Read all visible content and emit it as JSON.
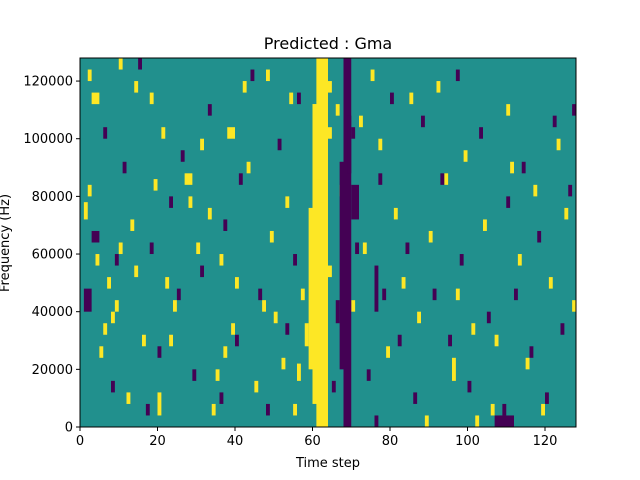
{
  "chart_data": {
    "type": "heatmap",
    "title": "Predicted : Gma",
    "xlabel": "Time step",
    "ylabel": "Frequency (Hz)",
    "xlim": [
      0,
      128
    ],
    "ylim": [
      0,
      128000
    ],
    "x_ticks": [
      0,
      20,
      40,
      60,
      80,
      100,
      120
    ],
    "x_tick_labels": [
      "0",
      "20",
      "40",
      "60",
      "80",
      "100",
      "120"
    ],
    "y_ticks": [
      0,
      20000,
      40000,
      60000,
      80000,
      100000,
      120000
    ],
    "y_tick_labels": [
      "0",
      "20000",
      "40000",
      "60000",
      "80000",
      "100000",
      "120000"
    ],
    "grid": false,
    "legend": "none",
    "colors": {
      "low": "#440154",
      "mid": "#21908d",
      "high": "#fde725"
    },
    "background_level": "mid",
    "high_cells": [
      [
        61,
        0,
        3,
        128
      ],
      [
        60,
        8,
        2,
        104
      ],
      [
        59,
        20,
        1,
        56
      ],
      [
        62,
        20,
        1,
        56
      ],
      [
        63,
        10,
        1,
        40
      ],
      [
        58,
        28,
        1,
        8
      ],
      [
        56,
        16,
        1,
        6
      ],
      [
        55,
        4,
        1,
        4
      ],
      [
        57,
        44,
        1,
        4
      ],
      [
        64,
        52,
        1,
        4
      ],
      [
        63,
        68,
        1,
        4
      ],
      [
        62,
        72,
        1,
        6
      ],
      [
        63,
        80,
        1,
        6
      ],
      [
        62,
        92,
        1,
        4
      ],
      [
        64,
        100,
        1,
        4
      ],
      [
        60,
        108,
        1,
        4
      ],
      [
        64,
        116,
        1,
        4
      ],
      [
        61,
        86,
        1,
        4
      ],
      [
        2,
        120,
        1,
        4
      ],
      [
        3,
        112,
        2,
        4
      ],
      [
        1,
        72,
        1,
        6
      ],
      [
        2,
        80,
        1,
        4
      ],
      [
        4,
        56,
        1,
        4
      ],
      [
        5,
        24,
        1,
        4
      ],
      [
        6,
        32,
        1,
        4
      ],
      [
        7,
        48,
        1,
        4
      ],
      [
        8,
        36,
        1,
        4
      ],
      [
        9,
        40,
        1,
        4
      ],
      [
        10,
        124,
        1,
        4
      ],
      [
        10,
        60,
        1,
        4
      ],
      [
        12,
        8,
        1,
        4
      ],
      [
        13,
        68,
        1,
        4
      ],
      [
        14,
        116,
        1,
        4
      ],
      [
        14,
        52,
        1,
        4
      ],
      [
        16,
        28,
        1,
        4
      ],
      [
        18,
        112,
        1,
        4
      ],
      [
        19,
        82,
        1,
        4
      ],
      [
        20,
        4,
        1,
        8
      ],
      [
        21,
        100,
        1,
        4
      ],
      [
        22,
        48,
        1,
        4
      ],
      [
        23,
        28,
        1,
        4
      ],
      [
        24,
        40,
        1,
        4
      ],
      [
        27,
        84,
        2,
        4
      ],
      [
        28,
        76,
        1,
        4
      ],
      [
        30,
        60,
        1,
        4
      ],
      [
        31,
        96,
        1,
        4
      ],
      [
        33,
        72,
        1,
        4
      ],
      [
        34,
        4,
        1,
        4
      ],
      [
        35,
        16,
        1,
        4
      ],
      [
        36,
        56,
        1,
        4
      ],
      [
        37,
        24,
        1,
        4
      ],
      [
        38,
        100,
        2,
        4
      ],
      [
        39,
        32,
        1,
        4
      ],
      [
        40,
        48,
        1,
        4
      ],
      [
        42,
        116,
        1,
        4
      ],
      [
        43,
        88,
        1,
        4
      ],
      [
        45,
        12,
        1,
        4
      ],
      [
        47,
        40,
        1,
        4
      ],
      [
        48,
        120,
        1,
        4
      ],
      [
        49,
        64,
        1,
        4
      ],
      [
        50,
        36,
        1,
        4
      ],
      [
        52,
        20,
        1,
        4
      ],
      [
        53,
        76,
        1,
        4
      ],
      [
        54,
        112,
        1,
        4
      ],
      [
        66,
        108,
        1,
        4
      ],
      [
        67,
        80,
        1,
        4
      ],
      [
        70,
        40,
        1,
        4
      ],
      [
        72,
        104,
        1,
        4
      ],
      [
        73,
        60,
        1,
        4
      ],
      [
        75,
        120,
        1,
        4
      ],
      [
        77,
        96,
        1,
        4
      ],
      [
        79,
        24,
        1,
        4
      ],
      [
        81,
        72,
        1,
        4
      ],
      [
        83,
        48,
        1,
        4
      ],
      [
        85,
        112,
        1,
        4
      ],
      [
        87,
        36,
        1,
        4
      ],
      [
        89,
        0,
        1,
        4
      ],
      [
        90,
        64,
        1,
        4
      ],
      [
        92,
        116,
        1,
        4
      ],
      [
        94,
        84,
        1,
        4
      ],
      [
        96,
        16,
        1,
        8
      ],
      [
        97,
        44,
        1,
        4
      ],
      [
        99,
        92,
        1,
        4
      ],
      [
        101,
        32,
        1,
        4
      ],
      [
        102,
        0,
        1,
        4
      ],
      [
        104,
        68,
        1,
        4
      ],
      [
        106,
        4,
        1,
        4
      ],
      [
        107,
        28,
        1,
        4
      ],
      [
        110,
        108,
        1,
        4
      ],
      [
        111,
        88,
        1,
        4
      ],
      [
        113,
        56,
        1,
        4
      ],
      [
        115,
        20,
        1,
        4
      ],
      [
        117,
        80,
        1,
        4
      ],
      [
        119,
        4,
        1,
        4
      ],
      [
        121,
        48,
        1,
        4
      ],
      [
        123,
        96,
        1,
        4
      ],
      [
        125,
        72,
        1,
        4
      ],
      [
        127,
        40,
        1,
        4
      ]
    ],
    "low_cells": [
      [
        68,
        0,
        2,
        128
      ],
      [
        67,
        20,
        1,
        72
      ],
      [
        70,
        72,
        2,
        12
      ],
      [
        69,
        88,
        1,
        20
      ],
      [
        66,
        36,
        1,
        8
      ],
      [
        71,
        60,
        1,
        4
      ],
      [
        65,
        12,
        1,
        4
      ],
      [
        70,
        100,
        1,
        4
      ],
      [
        76,
        0,
        1,
        4
      ],
      [
        76,
        40,
        1,
        16
      ],
      [
        1,
        40,
        2,
        8
      ],
      [
        3,
        64,
        2,
        4
      ],
      [
        6,
        100,
        1,
        4
      ],
      [
        8,
        12,
        1,
        4
      ],
      [
        9,
        56,
        1,
        4
      ],
      [
        11,
        88,
        1,
        4
      ],
      [
        15,
        124,
        1,
        4
      ],
      [
        17,
        4,
        1,
        4
      ],
      [
        18,
        60,
        1,
        4
      ],
      [
        20,
        24,
        1,
        4
      ],
      [
        23,
        76,
        1,
        4
      ],
      [
        25,
        44,
        1,
        4
      ],
      [
        26,
        92,
        1,
        4
      ],
      [
        29,
        16,
        1,
        4
      ],
      [
        31,
        52,
        1,
        4
      ],
      [
        33,
        108,
        1,
        4
      ],
      [
        36,
        8,
        1,
        4
      ],
      [
        37,
        68,
        1,
        4
      ],
      [
        40,
        28,
        1,
        4
      ],
      [
        41,
        84,
        1,
        4
      ],
      [
        44,
        120,
        1,
        4
      ],
      [
        46,
        44,
        1,
        4
      ],
      [
        48,
        4,
        1,
        4
      ],
      [
        51,
        96,
        1,
        4
      ],
      [
        53,
        32,
        1,
        4
      ],
      [
        55,
        56,
        1,
        4
      ],
      [
        56,
        112,
        1,
        4
      ],
      [
        74,
        16,
        1,
        4
      ],
      [
        77,
        84,
        1,
        4
      ],
      [
        78,
        44,
        1,
        4
      ],
      [
        80,
        112,
        1,
        4
      ],
      [
        82,
        28,
        1,
        4
      ],
      [
        84,
        60,
        1,
        4
      ],
      [
        86,
        8,
        1,
        4
      ],
      [
        88,
        104,
        1,
        4
      ],
      [
        91,
        44,
        1,
        4
      ],
      [
        93,
        84,
        1,
        4
      ],
      [
        95,
        28,
        1,
        4
      ],
      [
        97,
        120,
        1,
        4
      ],
      [
        98,
        56,
        1,
        4
      ],
      [
        100,
        12,
        1,
        4
      ],
      [
        103,
        100,
        1,
        4
      ],
      [
        105,
        36,
        1,
        4
      ],
      [
        107,
        0,
        2,
        4
      ],
      [
        108,
        0,
        4,
        4
      ],
      [
        109,
        4,
        1,
        4
      ],
      [
        110,
        76,
        1,
        4
      ],
      [
        112,
        44,
        1,
        4
      ],
      [
        114,
        88,
        1,
        4
      ],
      [
        116,
        24,
        1,
        4
      ],
      [
        118,
        64,
        1,
        4
      ],
      [
        120,
        8,
        1,
        4
      ],
      [
        122,
        104,
        1,
        4
      ],
      [
        124,
        32,
        1,
        4
      ],
      [
        126,
        80,
        1,
        4
      ],
      [
        127,
        108,
        1,
        4
      ]
    ]
  }
}
